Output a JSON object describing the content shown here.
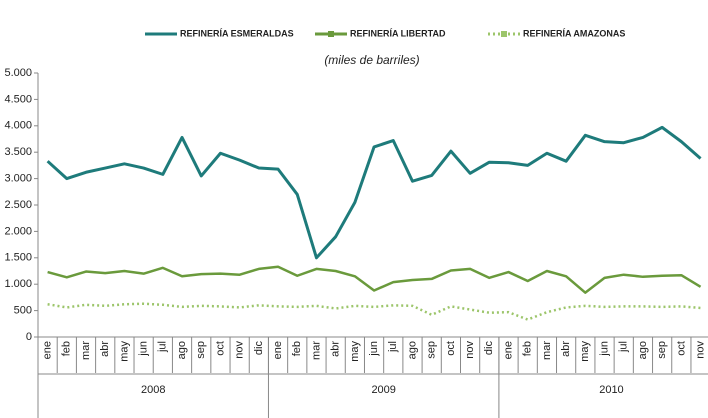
{
  "chart_data": {
    "type": "line",
    "subtitle": "(miles de barriles)",
    "categories": [
      "ene",
      "feb",
      "mar",
      "abr",
      "may",
      "jun",
      "jul",
      "ago",
      "sep",
      "oct",
      "nov",
      "dic",
      "ene",
      "feb",
      "mar",
      "abr",
      "may",
      "jun",
      "jul",
      "ago",
      "sep",
      "oct",
      "nov",
      "dic",
      "ene",
      "feb",
      "mar",
      "abr",
      "may",
      "jun",
      "jul",
      "ago",
      "sep",
      "oct",
      "nov"
    ],
    "years": [
      "2008",
      "2009",
      "2010"
    ],
    "series": [
      {
        "name": "REFINERÍA ESMERALDAS",
        "color": "#1e7b7b",
        "style": "solid",
        "values": [
          3330,
          3000,
          3120,
          3200,
          3280,
          3200,
          3080,
          3780,
          3050,
          3480,
          3350,
          3200,
          3180,
          2700,
          1500,
          1900,
          2550,
          3600,
          3720,
          2950,
          3060,
          3520,
          3100,
          3310,
          3300,
          3250,
          3480,
          3330,
          3820,
          3700,
          3680,
          3780,
          3970,
          3700,
          3380
        ]
      },
      {
        "name": "REFINERÍA LIBERTAD",
        "color": "#6a9a3c",
        "style": "solid",
        "values": [
          1230,
          1130,
          1240,
          1210,
          1250,
          1200,
          1310,
          1150,
          1190,
          1200,
          1180,
          1290,
          1330,
          1160,
          1290,
          1250,
          1150,
          880,
          1040,
          1080,
          1100,
          1260,
          1290,
          1120,
          1230,
          1060,
          1250,
          1150,
          840,
          1120,
          1180,
          1140,
          1160,
          1170,
          950
        ]
      },
      {
        "name": "REFINERÍA AMAZONAS",
        "color": "#9cc56a",
        "style": "dotted",
        "values": [
          620,
          560,
          610,
          590,
          620,
          630,
          610,
          570,
          590,
          580,
          560,
          600,
          580,
          570,
          590,
          540,
          590,
          570,
          600,
          590,
          420,
          580,
          520,
          460,
          470,
          330,
          470,
          560,
          590,
          570,
          580,
          580,
          570,
          580,
          550
        ]
      }
    ],
    "ylim": [
      0,
      5000
    ],
    "yticks": [
      0,
      {
        "value": 500,
        "label": "500"
      },
      {
        "value": 1000,
        "label": "1.000"
      },
      {
        "value": 1500,
        "label": "1.500"
      },
      {
        "value": 2000,
        "label": "2.000"
      },
      {
        "value": 2500,
        "label": "2.500"
      },
      {
        "value": 3000,
        "label": "3.000"
      },
      {
        "value": 3500,
        "label": "3.500"
      },
      {
        "value": 4000,
        "label": "4.000"
      },
      {
        "value": 4500,
        "label": "4.500"
      },
      {
        "value": 5000,
        "label": "5.000"
      }
    ],
    "grid": false
  }
}
